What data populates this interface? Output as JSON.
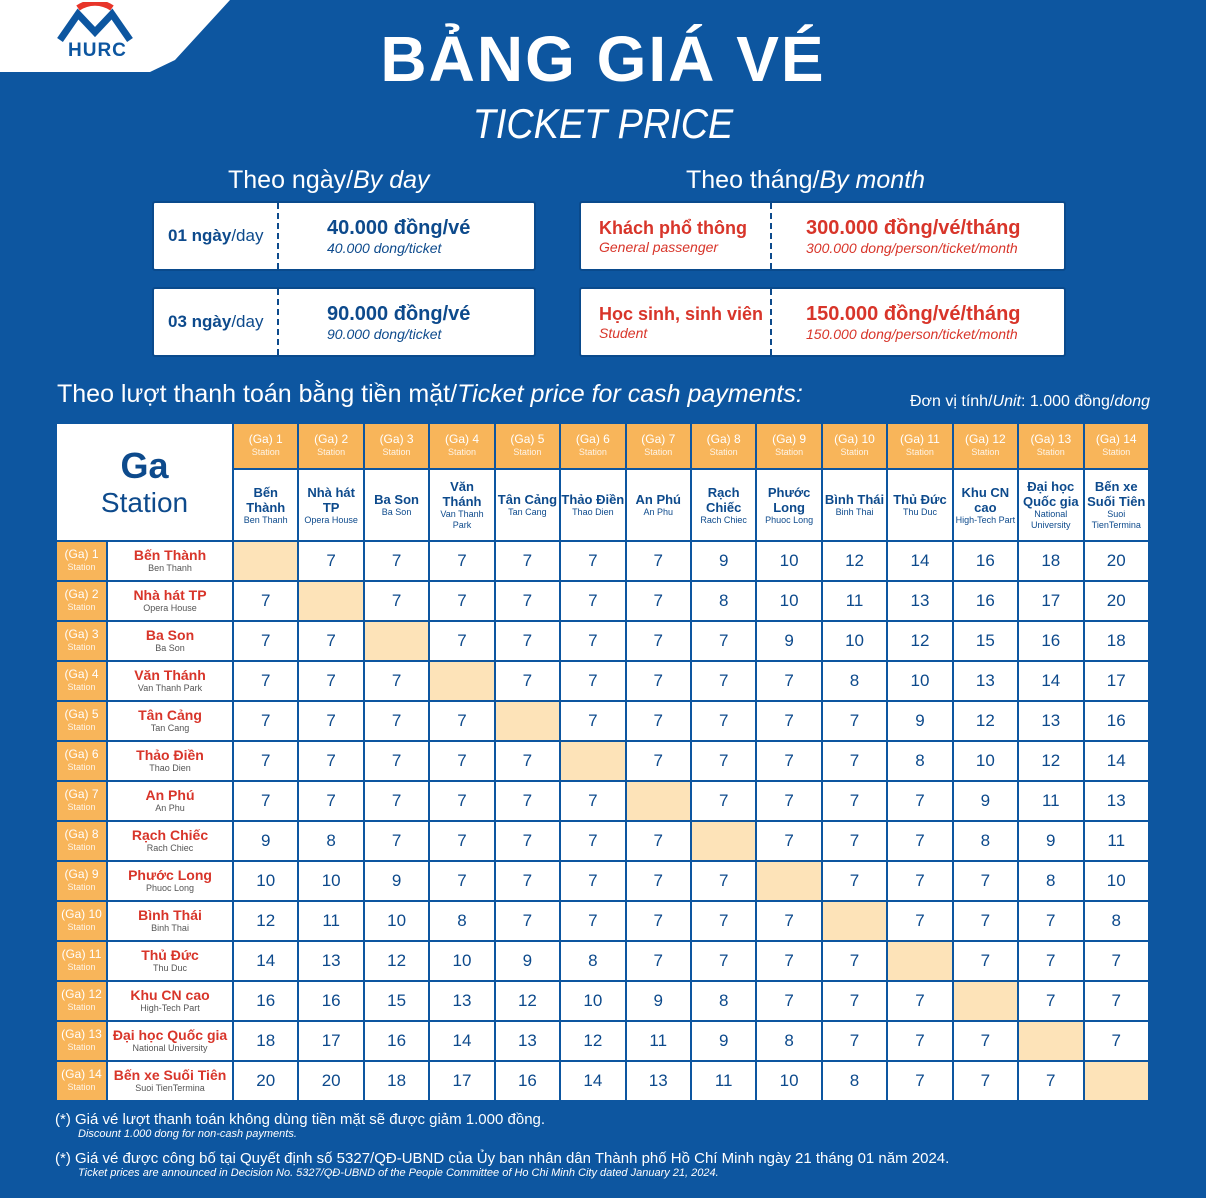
{
  "logo": {
    "text": "HURC"
  },
  "title": "BẢNG GIÁ VÉ",
  "subtitle": "TICKET PRICE",
  "by_day": {
    "heading_vi": "Theo ngày/",
    "heading_en": "By day",
    "cards": [
      {
        "days": "01 ngày",
        "unit": "/day",
        "price": "40.000 đồng/vé",
        "price_en": "40.000 dong/ticket"
      },
      {
        "days": "03 ngày",
        "unit": "/day",
        "price": "90.000 đồng/vé",
        "price_en": "90.000 dong/ticket"
      }
    ]
  },
  "by_month": {
    "heading_vi": "Theo tháng/",
    "heading_en": "By month",
    "cards": [
      {
        "type": "Khách phổ thông",
        "type_en": "General passenger",
        "price": "300.000 đồng/vé/tháng",
        "price_en": "300.000 dong/person/ticket/month"
      },
      {
        "type": "Học sinh, sinh viên",
        "type_en": "Student",
        "price": "150.000 đồng/vé/tháng",
        "price_en": "150.000 dong/person/ticket/month"
      }
    ]
  },
  "cash": {
    "heading_vi": "Theo lượt thanh toán bằng tiền mặt/",
    "heading_en": "Ticket price for cash payments:",
    "unit_vi": "Đơn vị tính/",
    "unit_en": "Unit",
    "unit_val": ": 1.000 đồng/",
    "unit_dong": "dong"
  },
  "table": {
    "corner_vi": "Ga",
    "corner_en": "Station",
    "station_word": "Station",
    "stations": [
      {
        "num": "(Ga) 1",
        "name": "Bến Thành",
        "en": "Ben Thanh"
      },
      {
        "num": "(Ga) 2",
        "name": "Nhà hát TP",
        "en": "Opera House"
      },
      {
        "num": "(Ga) 3",
        "name": "Ba Son",
        "en": "Ba Son"
      },
      {
        "num": "(Ga) 4",
        "name": "Văn Thánh",
        "en": "Van Thanh Park"
      },
      {
        "num": "(Ga) 5",
        "name": "Tân Cảng",
        "en": "Tan Cang"
      },
      {
        "num": "(Ga) 6",
        "name": "Thảo Điền",
        "en": "Thao Dien"
      },
      {
        "num": "(Ga) 7",
        "name": "An Phú",
        "en": "An Phu"
      },
      {
        "num": "(Ga) 8",
        "name": "Rạch Chiếc",
        "en": "Rach Chiec"
      },
      {
        "num": "(Ga) 9",
        "name": "Phước Long",
        "en": "Phuoc Long"
      },
      {
        "num": "(Ga) 10",
        "name": "Bình Thái",
        "en": "Binh Thai"
      },
      {
        "num": "(Ga) 11",
        "name": "Thủ Đức",
        "en": "Thu Duc"
      },
      {
        "num": "(Ga) 12",
        "name": "Khu CN cao",
        "en": "High-Tech Part"
      },
      {
        "num": "(Ga) 13",
        "name": "Đại học Quốc gia",
        "en": "National University"
      },
      {
        "num": "(Ga) 14",
        "name": "Bến xe Suối Tiên",
        "en": "Suoi TienTermina"
      }
    ],
    "prices": [
      [
        null,
        7,
        7,
        7,
        7,
        7,
        7,
        9,
        10,
        12,
        14,
        16,
        18,
        20
      ],
      [
        7,
        null,
        7,
        7,
        7,
        7,
        7,
        8,
        10,
        11,
        13,
        16,
        17,
        20
      ],
      [
        7,
        7,
        null,
        7,
        7,
        7,
        7,
        7,
        9,
        10,
        12,
        15,
        16,
        18
      ],
      [
        7,
        7,
        7,
        null,
        7,
        7,
        7,
        7,
        7,
        8,
        10,
        13,
        14,
        17
      ],
      [
        7,
        7,
        7,
        7,
        null,
        7,
        7,
        7,
        7,
        7,
        9,
        12,
        13,
        16
      ],
      [
        7,
        7,
        7,
        7,
        7,
        null,
        7,
        7,
        7,
        7,
        8,
        10,
        12,
        14
      ],
      [
        7,
        7,
        7,
        7,
        7,
        7,
        null,
        7,
        7,
        7,
        7,
        9,
        11,
        13
      ],
      [
        9,
        8,
        7,
        7,
        7,
        7,
        7,
        null,
        7,
        7,
        7,
        8,
        9,
        11
      ],
      [
        10,
        10,
        9,
        7,
        7,
        7,
        7,
        7,
        null,
        7,
        7,
        7,
        8,
        10
      ],
      [
        12,
        11,
        10,
        8,
        7,
        7,
        7,
        7,
        7,
        null,
        7,
        7,
        7,
        8
      ],
      [
        14,
        13,
        12,
        10,
        9,
        8,
        7,
        7,
        7,
        7,
        null,
        7,
        7,
        7
      ],
      [
        16,
        16,
        15,
        13,
        12,
        10,
        9,
        8,
        7,
        7,
        7,
        null,
        7,
        7
      ],
      [
        18,
        17,
        16,
        14,
        13,
        12,
        11,
        9,
        8,
        7,
        7,
        7,
        null,
        7
      ],
      [
        20,
        20,
        18,
        17,
        16,
        14,
        13,
        11,
        10,
        8,
        7,
        7,
        7,
        null
      ]
    ]
  },
  "notes": [
    {
      "vi": "(*) Giá vé lượt thanh toán không dùng tiền mặt sẽ được giảm 1.000 đồng.",
      "en": "Discount 1.000 dong for non-cash payments."
    },
    {
      "vi": "(*) Giá vé được công bố tại Quyết định số 5327/QĐ-UBND của Ủy ban nhân dân Thành phố Hồ Chí Minh ngày 21 tháng 01 năm 2024.",
      "en": "Ticket prices are announced in Decision No. 5327/QĐ-UBND of the People Committee of Ho Chi Minh City dated January 21, 2024."
    }
  ],
  "colors": {
    "background": "#0d56a0",
    "accent_orange": "#f8b55a",
    "diagonal": "#fde3b8",
    "red": "#d8352a"
  }
}
